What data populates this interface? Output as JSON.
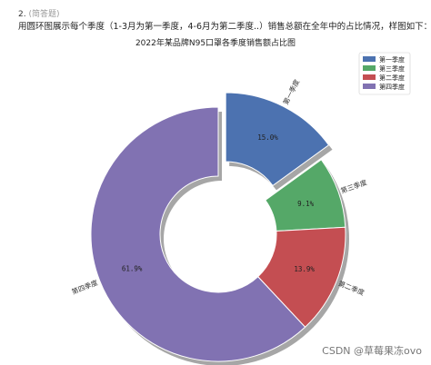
{
  "question": {
    "number": "2.",
    "tag": "(简答题)",
    "text": "用圆环图展示每个季度（1-3月为第一季度，4-6月为第二季度..）销售总额在全年中的占比情况，样图如下："
  },
  "watermark": "CSDN @草莓果冻ovo",
  "chart_data": {
    "type": "pie",
    "variant": "donut",
    "title": "2022年某品牌N95口罩各季度销售额占比图",
    "categories": [
      "第一季度",
      "第三季度",
      "第二季度",
      "第四季度"
    ],
    "values": [
      15.0,
      9.1,
      13.9,
      61.9
    ],
    "value_labels": [
      "15.0%",
      "9.1%",
      "13.9%",
      "61.9%"
    ],
    "colors": [
      "#4c72b0",
      "#55a868",
      "#c44e52",
      "#8172b2"
    ],
    "exploded": [
      true,
      false,
      false,
      false
    ],
    "start_angle_deg": 90,
    "direction": "clockwise",
    "shadow": true,
    "legend": {
      "position": "top-right",
      "entries": [
        "第一季度",
        "第三季度",
        "第二季度",
        "第四季度"
      ]
    }
  }
}
